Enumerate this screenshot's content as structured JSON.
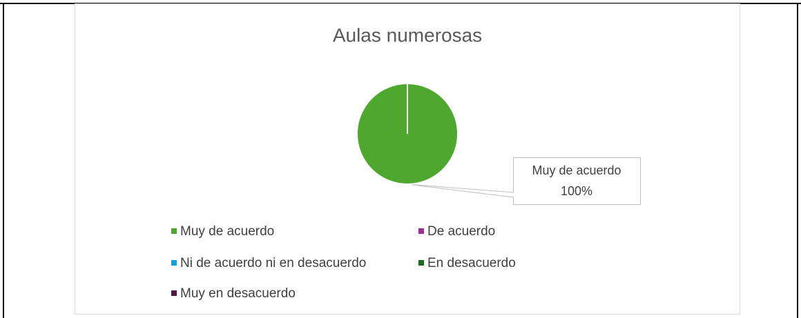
{
  "chart_data": {
    "type": "pie",
    "title": "Aulas numerosas",
    "categories": [
      "Muy de acuerdo",
      "De acuerdo",
      "Ni de acuerdo ni en desacuerdo",
      "En desacuerdo",
      "Muy en desacuerdo"
    ],
    "values": [
      100,
      0,
      0,
      0,
      0
    ],
    "value_labels": [
      "100%",
      null,
      null,
      null,
      null
    ],
    "colors": [
      "#4ea72e",
      "#a02b93",
      "#0f9ed5",
      "#196b24",
      "#501549"
    ],
    "legend": "bottom"
  }
}
